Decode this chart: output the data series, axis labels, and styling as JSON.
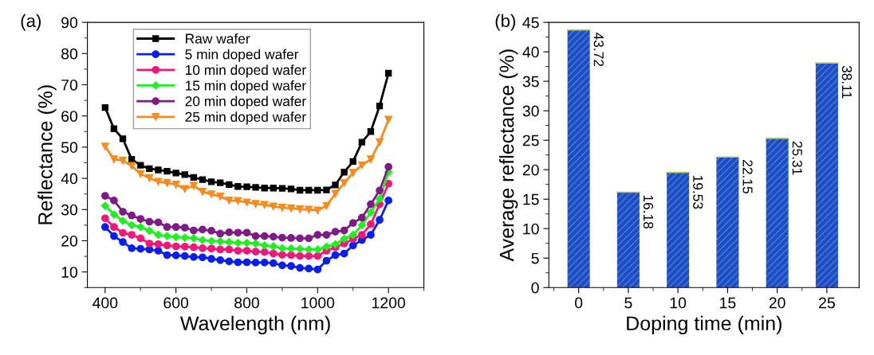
{
  "chart_data": [
    {
      "type": "line",
      "xlabel": "Wavelength (nm)",
      "ylabel": "Reflectance (%)",
      "annotations": [
        "(a)"
      ],
      "xlim": [
        350,
        1300
      ],
      "xticks": [
        400,
        600,
        800,
        1000,
        1200
      ],
      "ylim": [
        5,
        90
      ],
      "yticks": [
        10,
        20,
        30,
        40,
        50,
        60,
        70,
        80,
        90
      ],
      "grid": false,
      "legend": "top",
      "line_style": "solid",
      "x": [
        400,
        425,
        450,
        475,
        500,
        525,
        550,
        575,
        600,
        625,
        650,
        675,
        700,
        725,
        750,
        775,
        800,
        825,
        850,
        875,
        900,
        925,
        950,
        975,
        1000,
        1025,
        1050,
        1075,
        1100,
        1125,
        1150,
        1175,
        1200
      ],
      "series": [
        {
          "name": "Raw wafer",
          "color": "#000000",
          "marker": "square",
          "values": [
            62.7,
            55.9,
            52.7,
            46.1,
            44.2,
            43.1,
            42.7,
            42.3,
            41.7,
            41.2,
            40.3,
            39.6,
            38.9,
            38.6,
            38.0,
            37.4,
            37.3,
            37.1,
            36.9,
            36.9,
            36.8,
            36.6,
            36.2,
            36.2,
            36.2,
            36.3,
            37.9,
            42.0,
            45.4,
            51.6,
            55.0,
            63.2,
            73.7
          ]
        },
        {
          "name": "5 min doped wafer",
          "color": "#0a1ef0",
          "marker": "circle",
          "values": [
            24.4,
            21.5,
            19.6,
            17.6,
            17.4,
            17.2,
            16.8,
            15.4,
            15.3,
            15.1,
            14.8,
            14.7,
            14.2,
            13.8,
            13.4,
            13.1,
            13.1,
            13.0,
            13.0,
            12.8,
            12.1,
            11.9,
            11.3,
            11.1,
            10.8,
            13.6,
            15.4,
            15.9,
            18.5,
            20.2,
            21.9,
            26.7,
            32.9
          ]
        },
        {
          "name": "10 min doped wafer",
          "color": "#f5167a",
          "marker": "circle",
          "values": [
            27.2,
            24.4,
            22.5,
            21.9,
            20.8,
            19.1,
            18.9,
            18.5,
            18.2,
            18.1,
            17.9,
            17.6,
            17.5,
            17.2,
            17.2,
            16.8,
            16.8,
            16.5,
            16.4,
            15.9,
            15.5,
            15.4,
            15.1,
            15.1,
            15.1,
            16.8,
            17.9,
            19.1,
            20.6,
            21.9,
            25.3,
            31.7,
            38.3
          ]
        },
        {
          "name": "15 min doped wafer",
          "color": "#1ef01e",
          "marker": "diamond",
          "values": [
            31.2,
            28.4,
            26.4,
            25.0,
            24.4,
            23.2,
            21.9,
            21.5,
            21.2,
            21.0,
            20.8,
            20.2,
            19.9,
            19.8,
            19.6,
            19.3,
            19.3,
            19.1,
            18.5,
            18.2,
            17.6,
            17.5,
            17.4,
            17.2,
            17.2,
            18.1,
            18.9,
            20.6,
            21.9,
            25.0,
            29.1,
            33.4,
            42.0
          ]
        },
        {
          "name": "20 min doped wafer",
          "color": "#7f1a86",
          "marker": "circle",
          "values": [
            34.4,
            32.9,
            29.3,
            28.1,
            27.0,
            26.1,
            25.9,
            24.4,
            24.4,
            24.2,
            23.3,
            23.6,
            23.2,
            22.3,
            22.7,
            22.6,
            22.6,
            21.5,
            21.5,
            21.3,
            21.0,
            20.9,
            20.8,
            20.8,
            21.9,
            21.9,
            22.9,
            23.3,
            25.7,
            27.4,
            31.7,
            36.1,
            43.7
          ]
        },
        {
          "name": "25 min doped wafer",
          "color": "#f98a1c",
          "marker": "triangle",
          "values": [
            50.2,
            46.1,
            45.7,
            44.0,
            41.4,
            40.1,
            38.9,
            38.5,
            38.0,
            36.6,
            37.6,
            35.7,
            34.9,
            34.2,
            32.9,
            32.8,
            32.3,
            31.8,
            31.5,
            31.0,
            30.6,
            30.4,
            30.1,
            30.0,
            29.7,
            31.2,
            35.1,
            38.5,
            41.8,
            44.2,
            46.1,
            51.6,
            58.8
          ]
        }
      ]
    },
    {
      "type": "bar",
      "xlabel": "Doping time (min)",
      "ylabel": "Average reflectance (%)",
      "annotations": [
        "(b)"
      ],
      "categories": [
        "0",
        "5",
        "10",
        "15",
        "20",
        "25"
      ],
      "values": [
        43.72,
        16.18,
        19.53,
        22.15,
        25.31,
        38.11
      ],
      "color": "#1f4cc4",
      "ylim": [
        0,
        45
      ],
      "yticks": [
        0,
        5,
        10,
        15,
        20,
        25,
        30,
        35,
        40,
        45
      ],
      "grid": false,
      "data_labels": true
    }
  ]
}
